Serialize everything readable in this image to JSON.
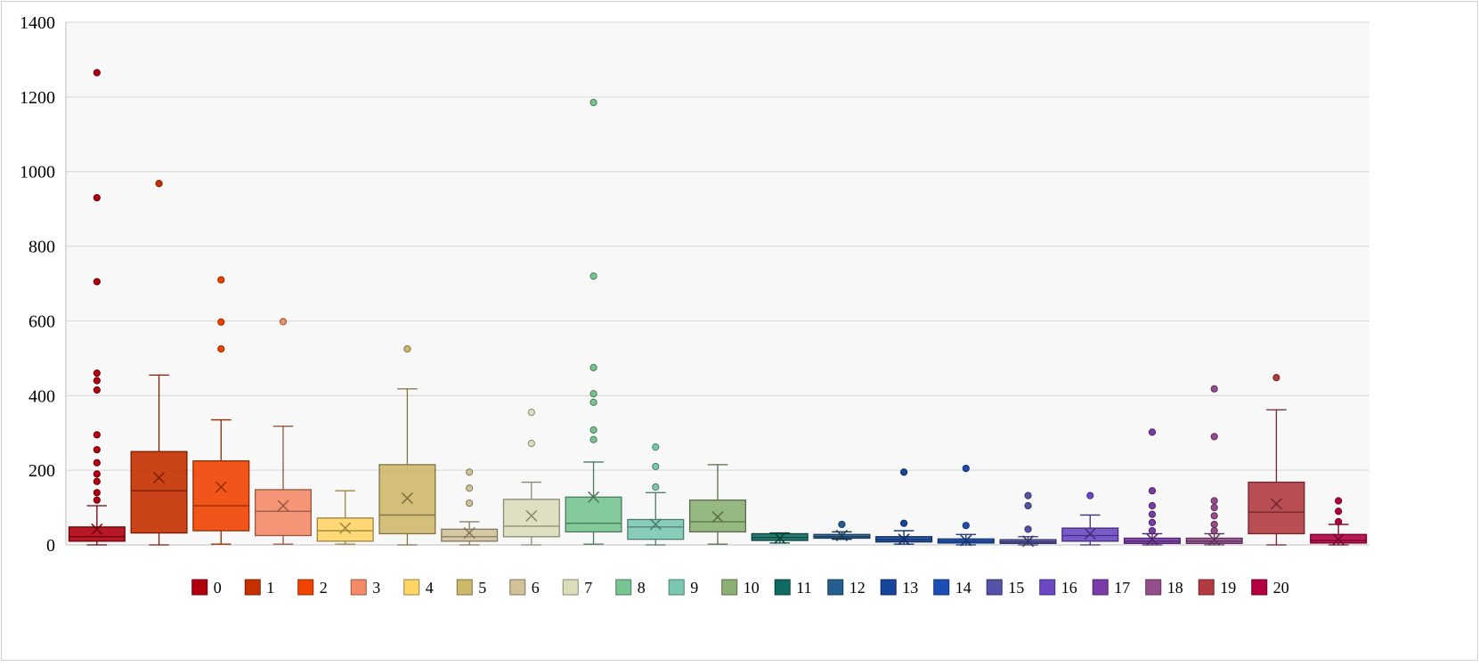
{
  "chart_data": {
    "type": "box",
    "title": "",
    "xlabel": "",
    "ylabel": "",
    "ylim": [
      0,
      1400
    ],
    "yticks": [
      0,
      200,
      400,
      600,
      800,
      1000,
      1200,
      1400
    ],
    "grid": true,
    "legend_position": "bottom",
    "series": [
      {
        "name": "0",
        "color": "#B0000E",
        "min": 0,
        "q1": 10,
        "median": 22,
        "q3": 48,
        "max": 105,
        "mean": 42,
        "outliers": [
          120,
          140,
          170,
          190,
          220,
          255,
          295,
          415,
          440,
          460,
          705,
          930,
          1265
        ]
      },
      {
        "name": "1",
        "color": "#C53000",
        "min": 0,
        "q1": 32,
        "median": 145,
        "q3": 250,
        "max": 455,
        "mean": 180,
        "outliers": [
          968
        ]
      },
      {
        "name": "2",
        "color": "#F04200",
        "min": 2,
        "q1": 38,
        "median": 105,
        "q3": 225,
        "max": 335,
        "mean": 155,
        "outliers": [
          525,
          597,
          710
        ]
      },
      {
        "name": "3",
        "color": "#F48A68",
        "min": 2,
        "q1": 25,
        "median": 90,
        "q3": 148,
        "max": 318,
        "mean": 105,
        "outliers": [
          598
        ]
      },
      {
        "name": "4",
        "color": "#FFD566",
        "min": 2,
        "q1": 10,
        "median": 38,
        "q3": 72,
        "max": 145,
        "mean": 45,
        "outliers": []
      },
      {
        "name": "5",
        "color": "#CEB86C",
        "min": 0,
        "q1": 30,
        "median": 80,
        "q3": 215,
        "max": 418,
        "mean": 125,
        "outliers": [
          525
        ]
      },
      {
        "name": "6",
        "color": "#D2C29A",
        "min": 0,
        "q1": 10,
        "median": 22,
        "q3": 42,
        "max": 62,
        "mean": 32,
        "outliers": [
          112,
          152,
          195
        ]
      },
      {
        "name": "7",
        "color": "#DCDDBA",
        "min": 0,
        "q1": 22,
        "median": 50,
        "q3": 122,
        "max": 168,
        "mean": 78,
        "outliers": [
          272,
          355
        ]
      },
      {
        "name": "8",
        "color": "#78C492",
        "min": 2,
        "q1": 35,
        "median": 58,
        "q3": 128,
        "max": 222,
        "mean": 128,
        "outliers": [
          282,
          308,
          382,
          405,
          475,
          720,
          1185
        ]
      },
      {
        "name": "9",
        "color": "#7BC8B2",
        "min": 0,
        "q1": 15,
        "median": 48,
        "q3": 68,
        "max": 140,
        "mean": 55,
        "outliers": [
          155,
          210,
          262
        ]
      },
      {
        "name": "10",
        "color": "#8CB073",
        "min": 2,
        "q1": 35,
        "median": 62,
        "q3": 120,
        "max": 215,
        "mean": 75,
        "outliers": []
      },
      {
        "name": "11",
        "color": "#0F6B60",
        "min": 5,
        "q1": 12,
        "median": 20,
        "q3": 30,
        "max": 32,
        "mean": 18,
        "outliers": []
      },
      {
        "name": "12",
        "color": "#255E90",
        "min": 15,
        "q1": 18,
        "median": 22,
        "q3": 28,
        "max": 35,
        "mean": 25,
        "outliers": [
          55
        ]
      },
      {
        "name": "13",
        "color": "#16459C",
        "min": 2,
        "q1": 8,
        "median": 14,
        "q3": 22,
        "max": 38,
        "mean": 15,
        "outliers": [
          58,
          195
        ]
      },
      {
        "name": "14",
        "color": "#1B4FB4",
        "min": 0,
        "q1": 5,
        "median": 10,
        "q3": 16,
        "max": 28,
        "mean": 12,
        "outliers": [
          52,
          205
        ]
      },
      {
        "name": "15",
        "color": "#5453A8",
        "min": 0,
        "q1": 4,
        "median": 8,
        "q3": 14,
        "max": 22,
        "mean": 10,
        "outliers": [
          42,
          105,
          132
        ]
      },
      {
        "name": "16",
        "color": "#6C48C4",
        "min": 0,
        "q1": 10,
        "median": 25,
        "q3": 45,
        "max": 80,
        "mean": 30,
        "outliers": [
          132
        ]
      },
      {
        "name": "17",
        "color": "#7A3AA8",
        "min": 0,
        "q1": 4,
        "median": 10,
        "q3": 18,
        "max": 30,
        "mean": 15,
        "outliers": [
          38,
          60,
          82,
          105,
          145,
          302
        ]
      },
      {
        "name": "18",
        "color": "#944E8C",
        "min": 0,
        "q1": 4,
        "median": 10,
        "q3": 18,
        "max": 30,
        "mean": 14,
        "outliers": [
          38,
          55,
          78,
          100,
          118,
          290,
          418
        ]
      },
      {
        "name": "19",
        "color": "#B23B42",
        "min": 0,
        "q1": 30,
        "median": 88,
        "q3": 168,
        "max": 362,
        "mean": 110,
        "outliers": [
          448
        ]
      },
      {
        "name": "20",
        "color": "#B30040",
        "min": 0,
        "q1": 5,
        "median": 12,
        "q3": 28,
        "max": 55,
        "mean": 15,
        "outliers": [
          62,
          90,
          118
        ]
      }
    ]
  }
}
